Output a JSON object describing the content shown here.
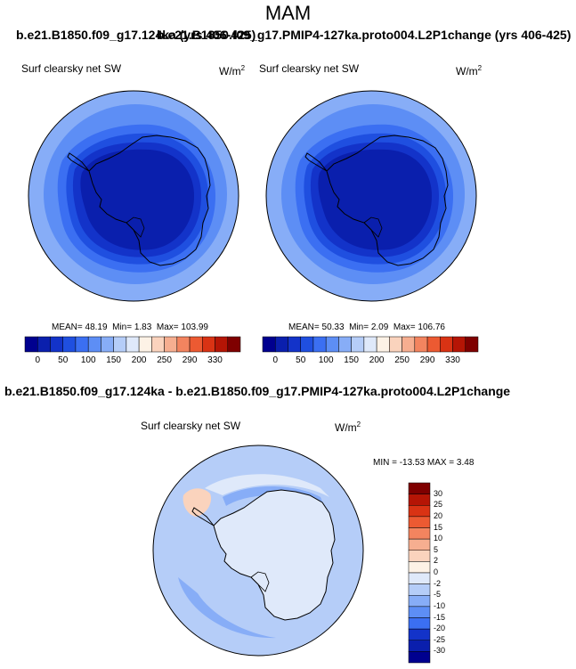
{
  "page": {
    "season": "MAM",
    "header_left": "b.e21.B1850.f09_g17.124ka (yrs 406-425)",
    "header_right": "b.e21.B1850.f09_g17.PMIP4-127ka.proto004.L2P1change (yrs 406-425)",
    "diff_title": "b.e21.B1850.f09_g17.124ka - b.e21.B1850.f09_g17.PMIP4-127ka.proto004.L2P1change"
  },
  "panels": [
    {
      "variable": "Surf clearsky net SW",
      "units": "W/m",
      "units_exp": "2",
      "stats": {
        "mean_label": "MEAN=",
        "mean": "48.19",
        "min_label": "Min=",
        "min": "1.83",
        "max_label": "Max=",
        "max": "103.99"
      }
    },
    {
      "variable": "Surf clearsky net SW",
      "units": "W/m",
      "units_exp": "2",
      "stats": {
        "mean_label": "MEAN=",
        "mean": "50.33",
        "min_label": "Min=",
        "min": "2.09",
        "max_label": "Max=",
        "max": "106.76"
      }
    }
  ],
  "diff_panel": {
    "variable": "Surf clearsky net SW",
    "units": "W/m",
    "units_exp": "2",
    "stats_text": "MIN = -13.53 MAX =   3.48"
  },
  "colorbar_abs": {
    "tick_labels": [
      "0",
      "50",
      "100",
      "150",
      "200",
      "250",
      "290",
      "330"
    ],
    "colors": [
      "#00008f",
      "#0a1fad",
      "#1333c9",
      "#1f4fe0",
      "#3b6ff2",
      "#5d8ef5",
      "#87adf7",
      "#b5cdf8",
      "#dfe9fa",
      "#fdf2e6",
      "#fad3bd",
      "#f6ae90",
      "#f3845f",
      "#ec5a32",
      "#d93314",
      "#b51505",
      "#7f0000"
    ]
  },
  "colorbar_diff": {
    "tick_labels": [
      "30",
      "25",
      "20",
      "15",
      "10",
      "5",
      "2",
      "0",
      "-2",
      "-5",
      "-10",
      "-15",
      "-20",
      "-25",
      "-30"
    ],
    "colors": [
      "#7f0000",
      "#b51505",
      "#d93314",
      "#ec5a32",
      "#f3845f",
      "#f6ae90",
      "#fad3bd",
      "#fdf2e6",
      "#dfe9fa",
      "#b5cdf8",
      "#87adf7",
      "#5d8ef5",
      "#3b6ff2",
      "#1333c9",
      "#0a1fad",
      "#00008f"
    ]
  },
  "map_colors": {
    "ring_outer": "#87adf7",
    "ring_2": "#5d8ef5",
    "ring_3": "#3b6ff2",
    "ring_4": "#1f4fe0",
    "ring_5": "#1333c9",
    "inner": "#0a1fad",
    "diff_bg": "#b5cdf8",
    "diff_land": "#dfe9fa",
    "diff_neg": "#87adf7",
    "diff_pos": "#fad3bd"
  }
}
